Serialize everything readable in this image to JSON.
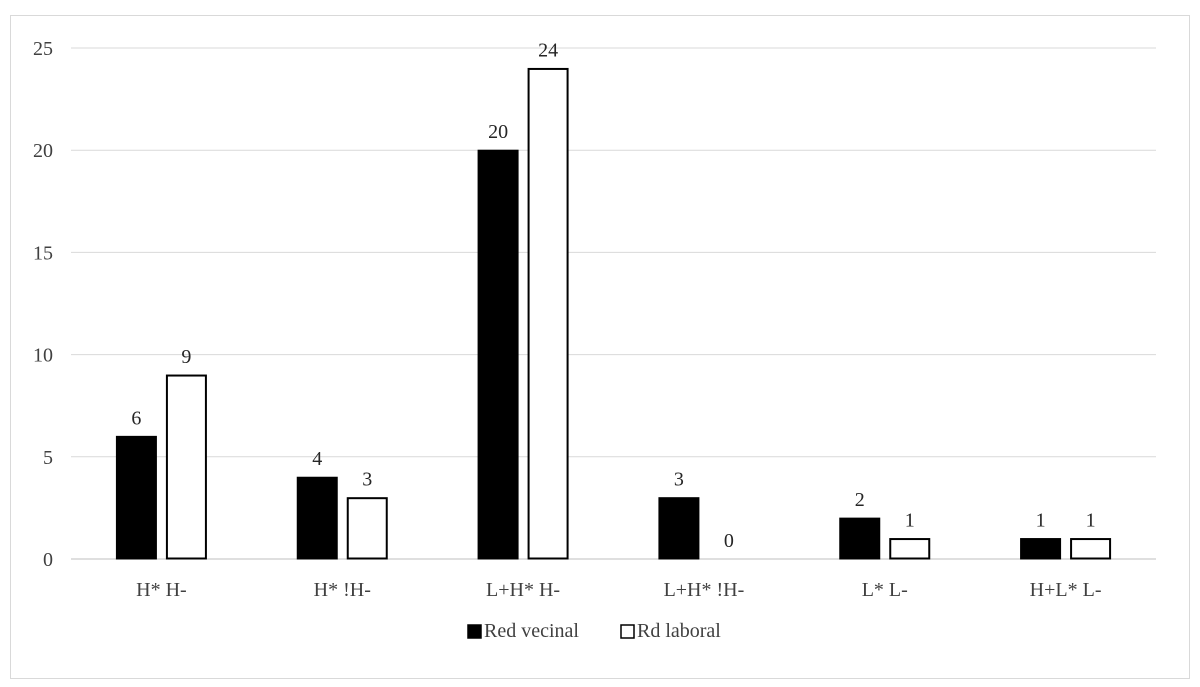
{
  "chart_data": {
    "type": "bar",
    "categories": [
      "H* H-",
      "H* !H-",
      "L+H* H-",
      "L+H* !H-",
      "L* L-",
      "H+L* L-"
    ],
    "series": [
      {
        "name": "Red vecinal",
        "values": [
          6,
          4,
          20,
          3,
          2,
          1
        ],
        "color": "#000000",
        "stroke": "#000000"
      },
      {
        "name": "Rd laboral",
        "values": [
          9,
          3,
          24,
          0,
          1,
          1
        ],
        "color": "#ffffff",
        "stroke": "#000000"
      }
    ],
    "ylim": [
      0,
      25
    ],
    "yticks": [
      0,
      5,
      10,
      15,
      20,
      25
    ],
    "grid": true,
    "legend_position": "bottom-center",
    "title": "",
    "xlabel": "",
    "ylabel": ""
  }
}
